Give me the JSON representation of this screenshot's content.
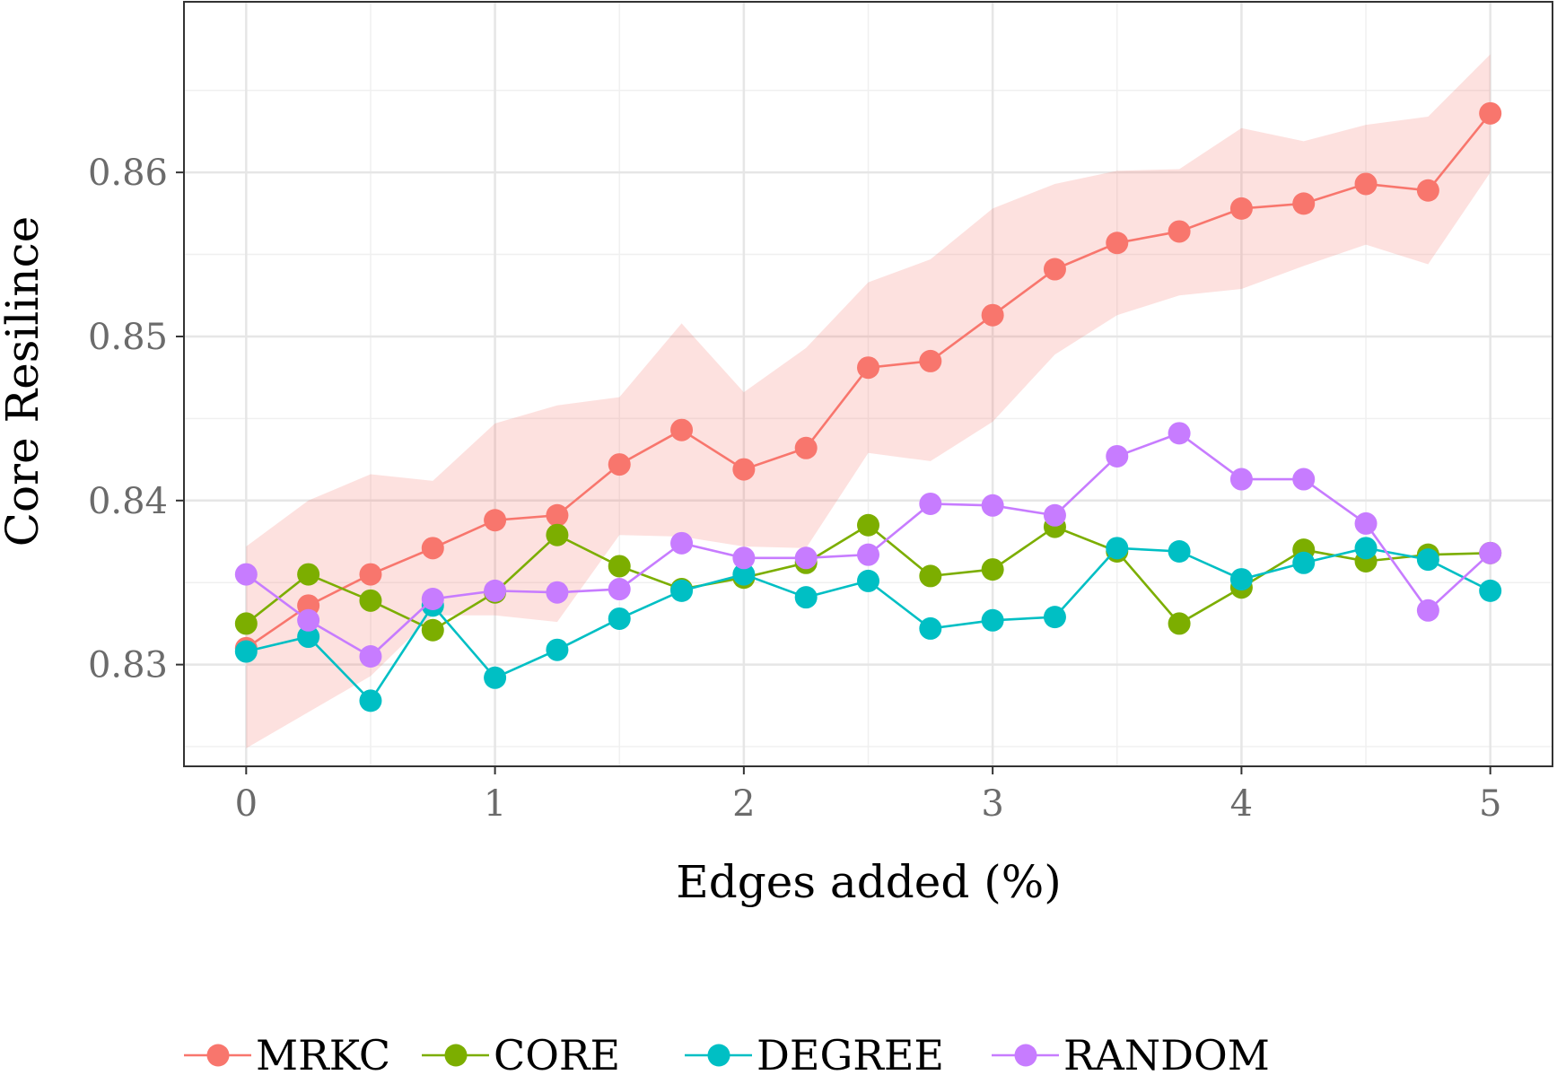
{
  "chart_data": {
    "type": "line",
    "xlabel": "Edges added (%)",
    "ylabel": "Core Resilince",
    "xlim": [
      -0.25,
      5.25
    ],
    "ylim": [
      0.8238,
      0.8704
    ],
    "x_ticks": [
      0,
      1,
      2,
      3,
      4,
      5
    ],
    "x_tick_labels": [
      "0",
      "1",
      "2",
      "3",
      "4",
      "5"
    ],
    "y_ticks": [
      0.83,
      0.84,
      0.85,
      0.86
    ],
    "y_tick_labels": [
      "0.83",
      "0.84",
      "0.85",
      "0.86"
    ],
    "grid": true,
    "legend_position": "bottom",
    "x": [
      0,
      0.25,
      0.5,
      0.75,
      1,
      1.25,
      1.5,
      1.75,
      2,
      2.25,
      2.5,
      2.75,
      3,
      3.25,
      3.5,
      3.75,
      4,
      4.25,
      4.5,
      4.75,
      5
    ],
    "series": [
      {
        "name": "MRKC",
        "color": "#F8766D",
        "values": [
          0.831,
          0.8336,
          0.8355,
          0.8371,
          0.8388,
          0.8391,
          0.8422,
          0.8443,
          0.8419,
          0.8432,
          0.8481,
          0.8485,
          0.8513,
          0.8541,
          0.8557,
          0.8564,
          0.8578,
          0.8581,
          0.8593,
          0.8589,
          0.8636
        ],
        "band_upper": [
          0.8372,
          0.84,
          0.8416,
          0.8412,
          0.8447,
          0.8458,
          0.8463,
          0.8508,
          0.8466,
          0.8493,
          0.8533,
          0.8547,
          0.8578,
          0.8593,
          0.8601,
          0.8602,
          0.8627,
          0.8619,
          0.8629,
          0.8634,
          0.8672
        ],
        "band_lower": [
          0.8249,
          0.8271,
          0.8293,
          0.833,
          0.833,
          0.8326,
          0.8379,
          0.8378,
          0.8372,
          0.8371,
          0.8429,
          0.8424,
          0.8448,
          0.8489,
          0.8513,
          0.8525,
          0.8529,
          0.8543,
          0.8556,
          0.8544,
          0.86
        ]
      },
      {
        "name": "CORE",
        "color": "#7CAE00",
        "values": [
          0.8325,
          0.8355,
          0.8339,
          0.8321,
          0.8344,
          0.8379,
          0.836,
          0.8346,
          0.8353,
          0.8362,
          0.8385,
          0.8354,
          0.8358,
          0.8384,
          0.8369,
          0.8325,
          0.8347,
          0.837,
          0.8363,
          0.8367,
          0.8368
        ]
      },
      {
        "name": "DEGREE",
        "color": "#00BFC4",
        "values": [
          0.8308,
          0.8317,
          0.8278,
          0.8336,
          0.8292,
          0.8309,
          0.8328,
          0.8345,
          0.8355,
          0.8341,
          0.8351,
          0.8322,
          0.8327,
          0.8329,
          0.8371,
          0.8369,
          0.8352,
          0.8362,
          0.8371,
          0.8364,
          0.8345
        ]
      },
      {
        "name": "RANDOM",
        "color": "#C77CFF",
        "values": [
          0.8355,
          0.8327,
          0.8305,
          0.834,
          0.8345,
          0.8344,
          0.8346,
          0.8374,
          0.8365,
          0.8365,
          0.8367,
          0.8398,
          0.8397,
          0.8391,
          0.8427,
          0.8441,
          0.8413,
          0.8413,
          0.8386,
          0.8333,
          0.8368
        ]
      }
    ]
  }
}
